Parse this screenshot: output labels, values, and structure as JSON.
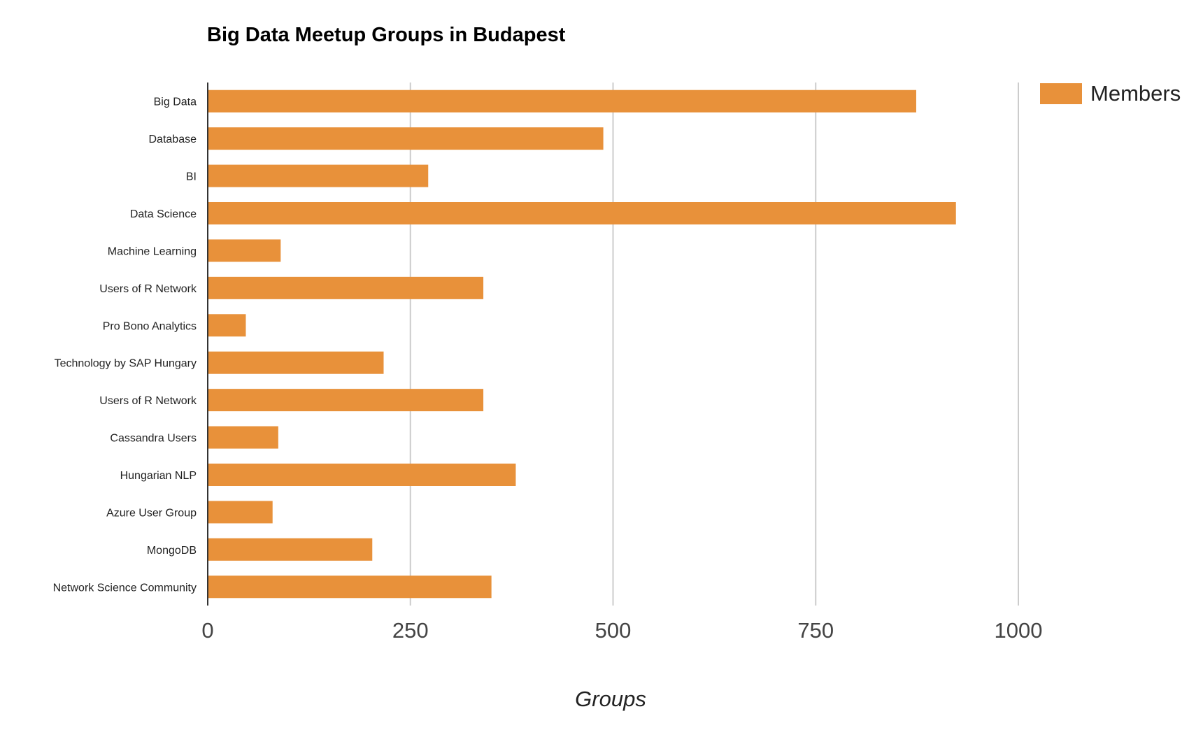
{
  "chart_data": {
    "type": "bar",
    "orientation": "horizontal",
    "title": "Big Data Meetup Groups in Budapest",
    "xlabel": "Groups",
    "ylabel": "",
    "xlim": [
      0,
      1000
    ],
    "xticks": [
      "0",
      "250",
      "500",
      "750",
      "1000"
    ],
    "grid": true,
    "legend_position": "top-right",
    "categories": [
      "Big Data",
      "Database",
      "BI",
      "Data Science",
      "Machine Learning",
      "Users of R Network",
      "Pro Bono Analytics",
      "Technology by SAP Hungary",
      "Users of R Network",
      "Cassandra Users",
      "Hungarian NLP",
      "Azure User Group",
      "MongoDB",
      "Network Science Community"
    ],
    "series": [
      {
        "name": "Members",
        "color": "#e8913a",
        "values": [
          874,
          488,
          272,
          923,
          90,
          340,
          47,
          217,
          340,
          87,
          380,
          80,
          203,
          350
        ]
      }
    ]
  }
}
